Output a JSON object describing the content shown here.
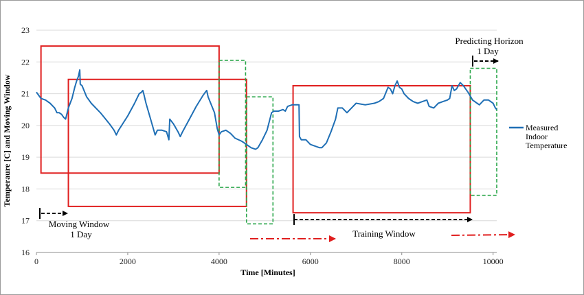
{
  "chart_data": {
    "type": "line",
    "xlabel": "Time [Minutes]",
    "ylabel": "Temperaure [C] and Moving Window",
    "xlim": [
      0,
      10080
    ],
    "ylim": [
      16,
      23
    ],
    "x_ticks": [
      0,
      2000,
      4000,
      6000,
      8000,
      10000
    ],
    "y_ticks": [
      16,
      17,
      18,
      19,
      20,
      21,
      22,
      23
    ],
    "grid": "horizontal",
    "legend": {
      "position": "right",
      "entries": [
        "Measured Indoor Temperature"
      ]
    },
    "series": [
      {
        "name": "Measured Indoor Temperature",
        "color": "#1f6fb5",
        "points": [
          [
            0,
            21.05
          ],
          [
            100,
            20.85
          ],
          [
            200,
            20.8
          ],
          [
            300,
            20.7
          ],
          [
            400,
            20.55
          ],
          [
            450,
            20.4
          ],
          [
            500,
            20.4
          ],
          [
            550,
            20.35
          ],
          [
            600,
            20.25
          ],
          [
            640,
            20.2
          ],
          [
            700,
            20.55
          ],
          [
            780,
            20.85
          ],
          [
            840,
            21.2
          ],
          [
            880,
            21.4
          ],
          [
            920,
            21.55
          ],
          [
            950,
            21.75
          ],
          [
            960,
            21.3
          ],
          [
            1000,
            21.25
          ],
          [
            1100,
            20.9
          ],
          [
            1200,
            20.7
          ],
          [
            1400,
            20.4
          ],
          [
            1600,
            20.05
          ],
          [
            1700,
            19.85
          ],
          [
            1750,
            19.7
          ],
          [
            1800,
            19.85
          ],
          [
            2000,
            20.3
          ],
          [
            2150,
            20.7
          ],
          [
            2250,
            21.0
          ],
          [
            2300,
            21.05
          ],
          [
            2330,
            21.1
          ],
          [
            2350,
            21.0
          ],
          [
            2400,
            20.7
          ],
          [
            2500,
            20.2
          ],
          [
            2600,
            19.7
          ],
          [
            2650,
            19.85
          ],
          [
            2750,
            19.85
          ],
          [
            2850,
            19.8
          ],
          [
            2900,
            19.55
          ],
          [
            2920,
            20.2
          ],
          [
            3000,
            20.05
          ],
          [
            3100,
            19.8
          ],
          [
            3150,
            19.65
          ],
          [
            3200,
            19.8
          ],
          [
            3350,
            20.2
          ],
          [
            3500,
            20.6
          ],
          [
            3650,
            20.95
          ],
          [
            3700,
            21.05
          ],
          [
            3730,
            21.1
          ],
          [
            3760,
            20.9
          ],
          [
            3900,
            20.4
          ],
          [
            3960,
            19.9
          ],
          [
            4000,
            19.7
          ],
          [
            4050,
            19.8
          ],
          [
            4150,
            19.85
          ],
          [
            4250,
            19.75
          ],
          [
            4350,
            19.6
          ],
          [
            4500,
            19.5
          ],
          [
            4600,
            19.4
          ],
          [
            4700,
            19.3
          ],
          [
            4800,
            19.25
          ],
          [
            4850,
            19.3
          ],
          [
            4950,
            19.55
          ],
          [
            5050,
            19.85
          ],
          [
            5150,
            20.4
          ],
          [
            5200,
            20.45
          ],
          [
            5300,
            20.45
          ],
          [
            5400,
            20.5
          ],
          [
            5450,
            20.45
          ],
          [
            5500,
            20.6
          ],
          [
            5600,
            20.65
          ],
          [
            5700,
            20.65
          ],
          [
            5750,
            20.65
          ],
          [
            5760,
            19.65
          ],
          [
            5800,
            19.55
          ],
          [
            5900,
            19.55
          ],
          [
            6000,
            19.4
          ],
          [
            6100,
            19.35
          ],
          [
            6200,
            19.3
          ],
          [
            6250,
            19.3
          ],
          [
            6350,
            19.45
          ],
          [
            6450,
            19.8
          ],
          [
            6550,
            20.2
          ],
          [
            6600,
            20.55
          ],
          [
            6700,
            20.55
          ],
          [
            6800,
            20.4
          ],
          [
            6900,
            20.55
          ],
          [
            7000,
            20.7
          ],
          [
            7200,
            20.65
          ],
          [
            7400,
            20.7
          ],
          [
            7500,
            20.75
          ],
          [
            7600,
            20.85
          ],
          [
            7700,
            21.2
          ],
          [
            7750,
            21.15
          ],
          [
            7800,
            21.0
          ],
          [
            7850,
            21.25
          ],
          [
            7900,
            21.4
          ],
          [
            7950,
            21.2
          ],
          [
            8000,
            21.15
          ],
          [
            8050,
            21.0
          ],
          [
            8150,
            20.85
          ],
          [
            8250,
            20.75
          ],
          [
            8350,
            20.7
          ],
          [
            8450,
            20.75
          ],
          [
            8550,
            20.8
          ],
          [
            8600,
            20.6
          ],
          [
            8700,
            20.55
          ],
          [
            8800,
            20.7
          ],
          [
            8900,
            20.75
          ],
          [
            9000,
            20.8
          ],
          [
            9050,
            20.85
          ],
          [
            9100,
            21.25
          ],
          [
            9150,
            21.1
          ],
          [
            9200,
            21.15
          ],
          [
            9280,
            21.35
          ],
          [
            9350,
            21.25
          ],
          [
            9450,
            21.05
          ],
          [
            9550,
            20.8
          ],
          [
            9650,
            20.7
          ],
          [
            9700,
            20.65
          ],
          [
            9800,
            20.8
          ],
          [
            9900,
            20.8
          ],
          [
            10000,
            20.7
          ],
          [
            10050,
            20.55
          ],
          [
            10080,
            20.5
          ]
        ]
      }
    ],
    "moving_windows": [
      {
        "x": [
          100,
          4000
        ],
        "y": [
          18.5,
          22.5
        ],
        "color": "#e01e1e",
        "style": "solid"
      },
      {
        "x": [
          700,
          4600
        ],
        "y": [
          17.45,
          21.45
        ],
        "color": "#e01e1e",
        "style": "solid"
      },
      {
        "x": [
          4000,
          4580
        ],
        "y": [
          18.05,
          22.05
        ],
        "color": "#2aa64a",
        "style": "dashed"
      },
      {
        "x": [
          4600,
          5180
        ],
        "y": [
          16.9,
          20.9
        ],
        "color": "#2aa64a",
        "style": "dashed"
      },
      {
        "x": [
          5620,
          9500
        ],
        "y": [
          17.25,
          21.25
        ],
        "color": "#e01e1e",
        "style": "solid"
      },
      {
        "x": [
          9500,
          10080
        ],
        "y": [
          17.8,
          21.8
        ],
        "color": "#2aa64a",
        "style": "dashed"
      }
    ],
    "annotations": {
      "moving_window": "Moving Window",
      "moving_window_duration": "1 Day",
      "predicting_horizon": "Predicting Horizon",
      "predicting_horizon_duration": "1 Day",
      "training_window": "Training Window"
    }
  }
}
